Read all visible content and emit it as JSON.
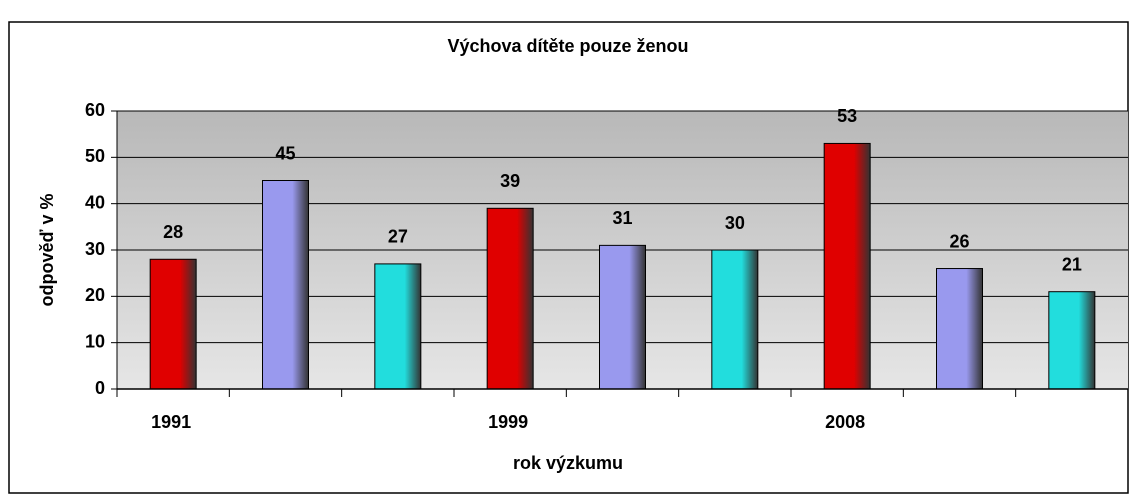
{
  "chart_data": {
    "type": "bar",
    "title": "Výchova dítěte pouze ženou",
    "xlabel": "rok výzkumu",
    "ylabel": "odpověď v %",
    "categories": [
      "1991",
      null,
      null,
      "1999",
      null,
      null,
      "2008",
      null,
      null
    ],
    "values": [
      28,
      45,
      27,
      39,
      31,
      30,
      53,
      26,
      21
    ],
    "colors": [
      "#e00000",
      "#9999ee",
      "#22dddd",
      "#e00000",
      "#9999ee",
      "#22dddd",
      "#e00000",
      "#9999ee",
      "#22dddd"
    ],
    "ylim": [
      0,
      60
    ],
    "yticks": [
      0,
      10,
      20,
      30,
      40,
      50,
      60
    ],
    "grid": true
  }
}
